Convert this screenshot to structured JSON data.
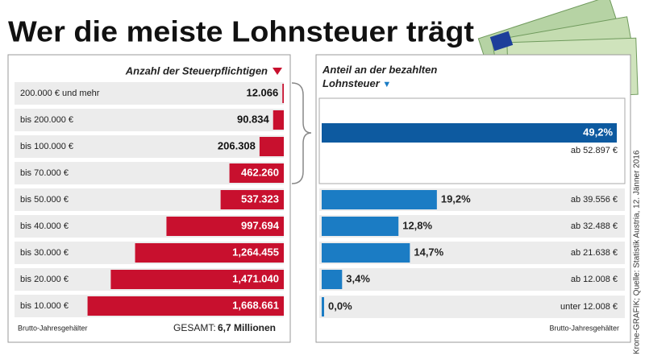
{
  "title": "Wer die meiste Lohnsteuer trägt",
  "source": "Krone-GRAFIK; Quelle: Statistik Austria, 12. Jänner 2016",
  "chart_data": [
    {
      "type": "bar",
      "orientation": "horizontal",
      "title": "Anzahl der Steuerpflichtigen",
      "categories": [
        "200.000 € und mehr",
        "bis 200.000 €",
        "bis 100.000 €",
        "bis 70.000 €",
        "bis 50.000 €",
        "bis 40.000 €",
        "bis 30.000 €",
        "bis 20.000 €",
        "bis 10.000 €"
      ],
      "values": [
        12066,
        90834,
        206308,
        462260,
        537323,
        997694,
        1264455,
        1471040,
        1668661
      ],
      "value_labels": [
        "12.066",
        "90.834",
        "206.308",
        "462.260",
        "537.323",
        "997.694",
        "1,264.455",
        "1,471.040",
        "1,668.661"
      ],
      "color": "#c8102e",
      "xlim": [
        0,
        1700000
      ],
      "footnote": "Brutto-Jahresgehälter",
      "total_label": "GESAMT:",
      "total": "6,7 Millionen"
    },
    {
      "type": "bar",
      "orientation": "horizontal",
      "title": "Anteil an der bezahlten Lohnsteuer",
      "categories": [
        "ab 52.897 €",
        "ab 39.556 €",
        "ab 32.488 €",
        "ab 21.638 €",
        "ab 12.008 €",
        "unter 12.008 €"
      ],
      "values": [
        49.2,
        19.2,
        12.8,
        14.7,
        3.4,
        0.0
      ],
      "value_labels": [
        "49,2%",
        "19,2%",
        "12,8%",
        "14,7%",
        "3,4%",
        "0,0%"
      ],
      "colors": [
        "#0d5aa0",
        "#1b7cc4",
        "#1b7cc4",
        "#1b7cc4",
        "#1b7cc4",
        "#1b7cc4"
      ],
      "xlim": [
        0,
        50
      ],
      "footnote": "Brutto-Jahresgehälter"
    }
  ]
}
